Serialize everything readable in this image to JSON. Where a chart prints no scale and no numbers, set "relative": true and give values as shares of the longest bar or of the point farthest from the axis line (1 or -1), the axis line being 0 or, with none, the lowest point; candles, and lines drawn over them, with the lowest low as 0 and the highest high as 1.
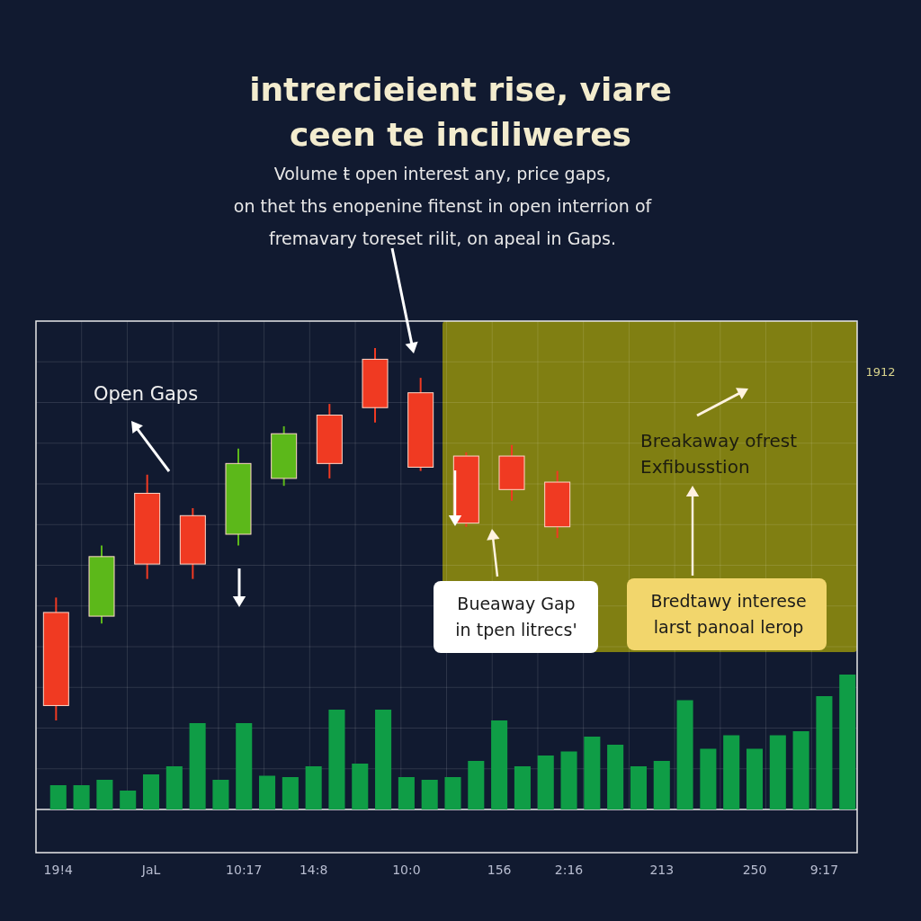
{
  "chart_data": [
    {
      "type": "candlestick",
      "title": "intrercieient rise, viare\nceen te inciliweres",
      "subtitle": "Volume ŧ open interest any, price gaps,\non thet ths enopenine fitenst in open interrion of\nfremavary toreset rilit, on apeal in Gaps.",
      "annotations": [
        "Open Gaps",
        "Breakaway ofrest\nExfibusstion",
        "Bueaway Gap\nin tpen litrecs'",
        "Bredtawy interese\nlarst panoal lerop",
        "1912"
      ],
      "relative": true,
      "categories": [
        null,
        null,
        null,
        null,
        null,
        null,
        null,
        null,
        null,
        null,
        null,
        null
      ],
      "ohlc": [
        [
          0.29,
          0.33,
          0,
          0.04
        ],
        [
          0.28,
          0.47,
          0.26,
          0.44
        ],
        [
          0.61,
          0.66,
          0.38,
          0.42
        ],
        [
          0.55,
          0.57,
          0.38,
          0.42
        ],
        [
          0.5,
          0.73,
          0.47,
          0.69
        ],
        [
          0.65,
          0.79,
          0.63,
          0.77
        ],
        [
          0.82,
          0.85,
          0.65,
          0.69
        ],
        [
          0.97,
          1,
          0.8,
          0.84
        ],
        [
          0.88,
          0.92,
          0.67,
          0.68
        ],
        [
          0.71,
          0.72,
          0.52,
          0.53
        ],
        [
          0.71,
          0.74,
          0.59,
          0.62
        ],
        [
          0.64,
          0.67,
          0.49,
          0.52
        ]
      ],
      "colors": [
        "#f03a22",
        "#5cb81a",
        "#f03a22",
        "#f03a22",
        "#5cb81a",
        "#5cb81a",
        "#f03a22",
        "#f03a22",
        "#f03a22",
        "#f03a22",
        "#f03a22",
        "#f03a22"
      ],
      "grid": true,
      "tick_labels": false
    },
    {
      "type": "bar",
      "relative": true,
      "color": "#0f9d46",
      "tick_labels": "x",
      "categories": [
        "19!4",
        null,
        null,
        null,
        "JaL",
        null,
        null,
        null,
        "10:17",
        null,
        null,
        "14:8",
        null,
        null,
        null,
        "10:0",
        null,
        null,
        null,
        "156",
        null,
        null,
        "2:16",
        null,
        null,
        null,
        "213",
        null,
        null,
        null,
        "250",
        null,
        null,
        "9:17",
        null
      ],
      "values": [
        0.18,
        0.18,
        0.22,
        0.14,
        0.26,
        0.32,
        0.64,
        0.22,
        0.64,
        0.25,
        0.24,
        0.32,
        0.74,
        0.34,
        0.74,
        0.24,
        0.22,
        0.24,
        0.36,
        0.66,
        0.32,
        0.4,
        0.43,
        0.54,
        0.48,
        0.32,
        0.36,
        0.81,
        0.45,
        0.55,
        0.45,
        0.55,
        0.58,
        0.84,
        1
      ]
    }
  ]
}
